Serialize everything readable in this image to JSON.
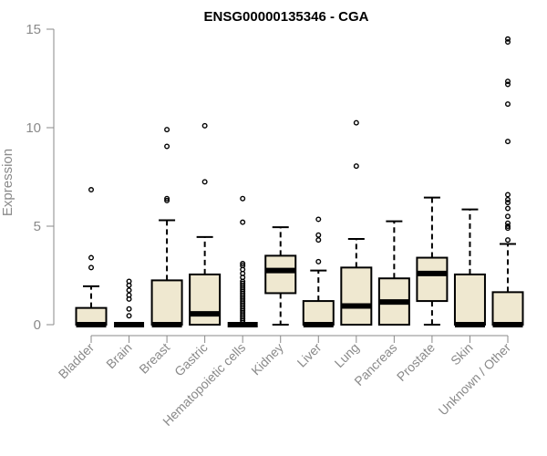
{
  "chart_data": {
    "type": "box",
    "title": "ENSG00000135346 - CGA",
    "ylabel": "Expression",
    "xlabel": "",
    "ylim": [
      0,
      15
    ],
    "yticks": [
      0,
      5,
      10,
      15
    ],
    "grid": false,
    "colors": {
      "box_fill": "#efe8d0",
      "box_stroke": "#000000",
      "axis": "#8a8a8a"
    },
    "categories": [
      "Bladder",
      "Brain",
      "Breast",
      "Gastric",
      "Hematopoietic cells",
      "Kidney",
      "Liver",
      "Lung",
      "Pancreas",
      "Prostate",
      "Skin",
      "Unknown / Other"
    ],
    "boxes": [
      {
        "category": "Bladder",
        "min": 0,
        "q1": 0,
        "median": 0,
        "q3": 0.85,
        "max": 1.95,
        "outliers": [
          2.9,
          3.4,
          6.85
        ]
      },
      {
        "category": "Brain",
        "min": 0,
        "q1": 0,
        "median": 0,
        "q3": 0,
        "max": 0,
        "outliers": [
          0.45,
          0.8,
          1.3,
          1.5,
          1.75,
          2.0,
          2.2
        ]
      },
      {
        "category": "Breast",
        "min": 0,
        "q1": 0,
        "median": 0,
        "q3": 2.25,
        "max": 5.3,
        "outliers": [
          6.3,
          6.4,
          9.05,
          9.9
        ]
      },
      {
        "category": "Gastric",
        "min": 0,
        "q1": 0,
        "median": 0.55,
        "q3": 2.55,
        "max": 4.45,
        "outliers": [
          7.25,
          10.1
        ]
      },
      {
        "category": "Hematopoietic cells",
        "min": 0,
        "q1": 0,
        "median": 0,
        "q3": 0,
        "max": 0,
        "outliers": [
          0.1,
          0.2,
          0.3,
          0.4,
          0.5,
          0.6,
          0.7,
          0.8,
          0.9,
          1.0,
          1.1,
          1.2,
          1.3,
          1.4,
          1.5,
          1.6,
          1.7,
          1.8,
          1.9,
          2.0,
          2.1,
          2.2,
          2.4,
          2.6,
          2.8,
          3.0,
          3.1,
          5.2,
          6.4
        ]
      },
      {
        "category": "Kidney",
        "min": 0,
        "q1": 1.6,
        "median": 2.75,
        "q3": 3.5,
        "max": 4.95,
        "outliers": []
      },
      {
        "category": "Liver",
        "min": 0,
        "q1": 0,
        "median": 0,
        "q3": 1.2,
        "max": 2.75,
        "outliers": [
          3.2,
          4.3,
          4.55,
          5.35
        ]
      },
      {
        "category": "Lung",
        "min": 0,
        "q1": 0,
        "median": 0.95,
        "q3": 2.9,
        "max": 4.35,
        "outliers": [
          8.05,
          10.25
        ]
      },
      {
        "category": "Pancreas",
        "min": 0,
        "q1": 0,
        "median": 1.15,
        "q3": 2.35,
        "max": 5.25,
        "outliers": []
      },
      {
        "category": "Prostate",
        "min": 0,
        "q1": 1.2,
        "median": 2.6,
        "q3": 3.4,
        "max": 6.45,
        "outliers": []
      },
      {
        "category": "Skin",
        "min": 0,
        "q1": 0,
        "median": 0,
        "q3": 2.55,
        "max": 5.85,
        "outliers": []
      },
      {
        "category": "Unknown / Other",
        "min": 0,
        "q1": 0,
        "median": 0,
        "q3": 1.65,
        "max": 4.1,
        "outliers": [
          4.3,
          4.9,
          5.0,
          5.15,
          5.5,
          5.9,
          6.2,
          6.35,
          6.6,
          9.3,
          11.2,
          12.2,
          12.35,
          14.35,
          14.5
        ]
      }
    ]
  }
}
